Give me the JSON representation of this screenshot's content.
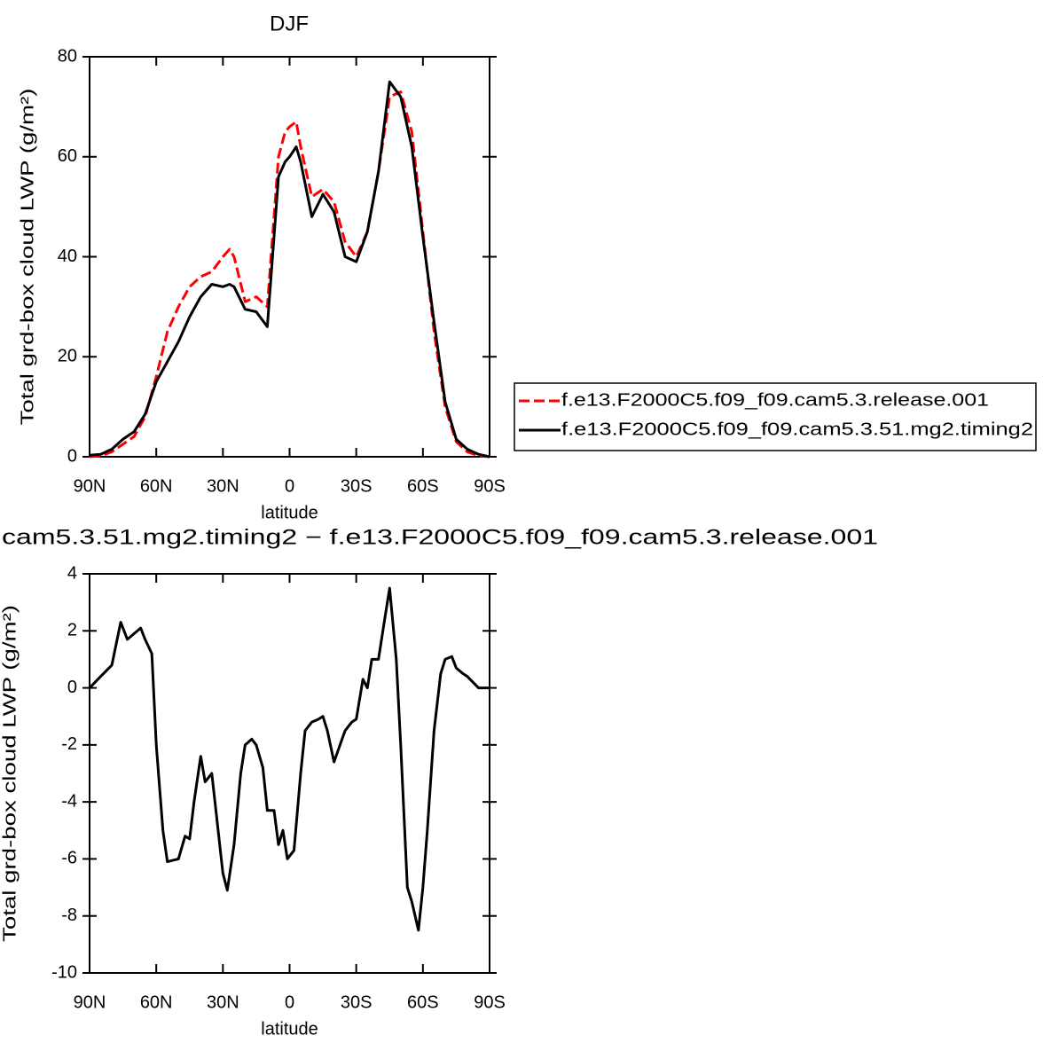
{
  "chart_data": [
    {
      "type": "line",
      "title": "DJF",
      "x_label": "latitude",
      "y_label": "Total grd-box cloud LWP (g/m²)",
      "x": [
        90,
        85,
        80,
        75,
        70,
        65,
        60,
        55,
        50,
        45,
        40,
        35,
        30,
        27,
        25,
        20,
        15,
        10,
        5,
        2,
        0,
        -3,
        -5,
        -10,
        -15,
        -20,
        -25,
        -30,
        -35,
        -40,
        -45,
        -50,
        -55,
        -60,
        -65,
        -70,
        -75,
        -80,
        -85,
        -90
      ],
      "series": [
        {
          "name": "f.e13.F2000C5.f09_f09.cam5.3.release.001",
          "color": "#ff0000",
          "line_style": "dashed",
          "values": [
            0,
            0.2,
            1,
            2.5,
            4,
            8,
            16,
            25,
            30,
            34,
            36,
            37,
            40,
            41.5,
            40,
            31,
            32,
            30,
            60,
            65,
            66,
            67,
            62,
            52,
            53.5,
            51,
            43,
            40,
            45,
            57,
            72,
            73,
            65,
            45,
            25,
            10,
            3,
            1,
            0.2,
            0
          ]
        },
        {
          "name": "f.e13.F2000C5.f09_f09.cam5.3.51.mg2.timing2",
          "color": "#000000",
          "line_style": "solid",
          "values": [
            0.3,
            0.5,
            1.5,
            3.5,
            5,
            8.5,
            15,
            19,
            23,
            28,
            32,
            34.5,
            34,
            34.5,
            34,
            29.5,
            29,
            26,
            56,
            59,
            60,
            62,
            59,
            48,
            52.5,
            49,
            40,
            39,
            45,
            57,
            75,
            72,
            62,
            44,
            27,
            11,
            3.5,
            1.5,
            0.5,
            0
          ]
        }
      ],
      "xlim": [
        90,
        -90
      ],
      "ylim": [
        0,
        80
      ],
      "xticks": [
        {
          "value": 90,
          "label": "90N"
        },
        {
          "value": 60,
          "label": "60N"
        },
        {
          "value": 30,
          "label": "30N"
        },
        0,
        {
          "value": -30,
          "label": "30S"
        },
        {
          "value": -60,
          "label": "60S"
        },
        {
          "value": -90,
          "label": "90S"
        }
      ],
      "yticks": [
        0,
        20,
        40,
        60,
        80
      ],
      "legend": "right"
    },
    {
      "type": "line",
      "title": "cam5.3.51.mg2.timing2 − f.e13.F2000C5.f09_f09.cam5.3.release.001",
      "x_label": "latitude",
      "y_label": "Total grd-box cloud LWP (g/m²)",
      "x": [
        90,
        85,
        80,
        76,
        73,
        70,
        67,
        65,
        62,
        60,
        57,
        55,
        50,
        47,
        45,
        43,
        40,
        38,
        35,
        30,
        28,
        25,
        22,
        20,
        17,
        15,
        12,
        10,
        7,
        5,
        3,
        1,
        -2,
        -5,
        -7,
        -10,
        -13,
        -15,
        -17,
        -20,
        -25,
        -28,
        -30,
        -33,
        -35,
        -37,
        -40,
        -43,
        -45,
        -48,
        -50,
        -53,
        -55,
        -58,
        -60,
        -62,
        -65,
        -68,
        -70,
        -73,
        -75,
        -78,
        -80,
        -85,
        -90
      ],
      "series": [
        {
          "color": "#000000",
          "line_style": "solid",
          "values": [
            0,
            0.4,
            0.8,
            2.3,
            1.7,
            1.9,
            2.1,
            1.7,
            1.2,
            -2,
            -5,
            -6.1,
            -6,
            -5.2,
            -5.3,
            -4,
            -2.4,
            -3.3,
            -3,
            -6.5,
            -7.1,
            -5.5,
            -3,
            -2,
            -1.8,
            -2,
            -2.8,
            -4.3,
            -4.3,
            -5.5,
            -5,
            -6,
            -5.7,
            -3,
            -1.5,
            -1.2,
            -1.1,
            -1,
            -1.5,
            -2.6,
            -1.5,
            -1.2,
            -1.1,
            0.3,
            0,
            1,
            1,
            2.5,
            3.5,
            1,
            -2,
            -7,
            -7.5,
            -8.5,
            -7,
            -5,
            -1.5,
            0.5,
            1,
            1.1,
            0.7,
            0.5,
            0.4,
            0,
            0
          ]
        }
      ],
      "xlim": [
        90,
        -90
      ],
      "ylim": [
        -10,
        4
      ],
      "xticks": [
        {
          "value": 90,
          "label": "90N"
        },
        {
          "value": 60,
          "label": "60N"
        },
        {
          "value": 30,
          "label": "30N"
        },
        0,
        {
          "value": -30,
          "label": "30S"
        },
        {
          "value": -60,
          "label": "60S"
        },
        {
          "value": -90,
          "label": "90S"
        }
      ],
      "yticks": [
        -10,
        -8,
        -6,
        -4,
        -2,
        0,
        2,
        4
      ]
    }
  ]
}
